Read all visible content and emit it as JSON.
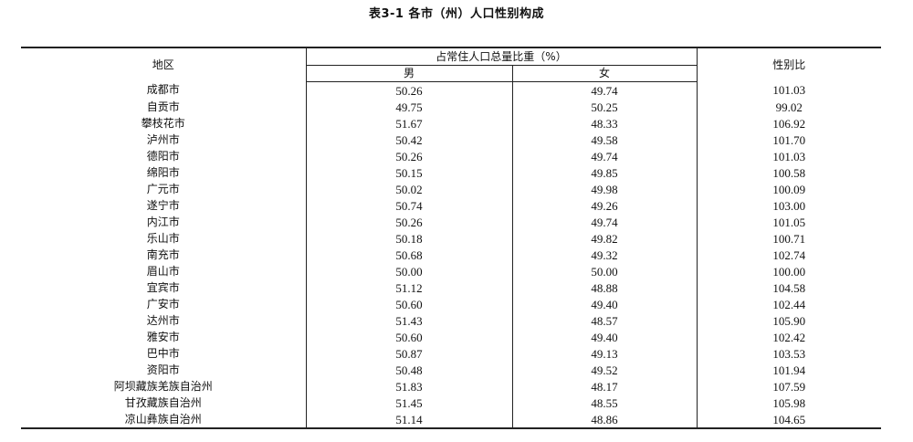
{
  "title": "表3-1  各市（州）人口性别构成",
  "header": {
    "region": "地区",
    "share": "占常住人口总量比重（%）",
    "male": "男",
    "female": "女",
    "ratio": "性别比"
  },
  "rows": [
    {
      "region": "成都市",
      "male": "50.26",
      "female": "49.74",
      "ratio": "101.03"
    },
    {
      "region": "自贡市",
      "male": "49.75",
      "female": "50.25",
      "ratio": "99.02"
    },
    {
      "region": "攀枝花市",
      "male": "51.67",
      "female": "48.33",
      "ratio": "106.92"
    },
    {
      "region": "泸州市",
      "male": "50.42",
      "female": "49.58",
      "ratio": "101.70"
    },
    {
      "region": "德阳市",
      "male": "50.26",
      "female": "49.74",
      "ratio": "101.03"
    },
    {
      "region": "绵阳市",
      "male": "50.15",
      "female": "49.85",
      "ratio": "100.58"
    },
    {
      "region": "广元市",
      "male": "50.02",
      "female": "49.98",
      "ratio": "100.09"
    },
    {
      "region": "遂宁市",
      "male": "50.74",
      "female": "49.26",
      "ratio": "103.00"
    },
    {
      "region": "内江市",
      "male": "50.26",
      "female": "49.74",
      "ratio": "101.05"
    },
    {
      "region": "乐山市",
      "male": "50.18",
      "female": "49.82",
      "ratio": "100.71"
    },
    {
      "region": "南充市",
      "male": "50.68",
      "female": "49.32",
      "ratio": "102.74"
    },
    {
      "region": "眉山市",
      "male": "50.00",
      "female": "50.00",
      "ratio": "100.00"
    },
    {
      "region": "宜宾市",
      "male": "51.12",
      "female": "48.88",
      "ratio": "104.58"
    },
    {
      "region": "广安市",
      "male": "50.60",
      "female": "49.40",
      "ratio": "102.44"
    },
    {
      "region": "达州市",
      "male": "51.43",
      "female": "48.57",
      "ratio": "105.90"
    },
    {
      "region": "雅安市",
      "male": "50.60",
      "female": "49.40",
      "ratio": "102.42"
    },
    {
      "region": "巴中市",
      "male": "50.87",
      "female": "49.13",
      "ratio": "103.53"
    },
    {
      "region": "资阳市",
      "male": "50.48",
      "female": "49.52",
      "ratio": "101.94"
    },
    {
      "region": "阿坝藏族羌族自治州",
      "male": "51.83",
      "female": "48.17",
      "ratio": "107.59"
    },
    {
      "region": "甘孜藏族自治州",
      "male": "51.45",
      "female": "48.55",
      "ratio": "105.98"
    },
    {
      "region": "凉山彝族自治州",
      "male": "51.14",
      "female": "48.86",
      "ratio": "104.65"
    }
  ]
}
